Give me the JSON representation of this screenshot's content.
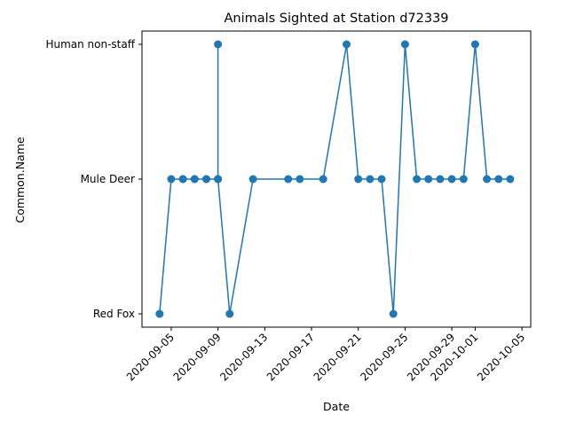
{
  "chart_data": {
    "type": "line",
    "title": "Animals Sighted at Station d72339",
    "xlabel": "Date",
    "ylabel": "Common.Name",
    "x_ticks": [
      "2020-09-05",
      "2020-09-09",
      "2020-09-13",
      "2020-09-17",
      "2020-09-21",
      "2020-09-25",
      "2020-09-29",
      "2020-10-01",
      "2020-10-05"
    ],
    "categories_y": [
      "Red Fox",
      "Mule Deer",
      "Human non-staff"
    ],
    "xlim": [
      "2020-09-02 12:00",
      "2020-10-05 18:00"
    ],
    "grid": false,
    "legend": "none",
    "color": "#1f77b4",
    "series": [
      {
        "points": [
          {
            "x": "2020-09-04",
            "y": "Red Fox"
          },
          {
            "x": "2020-09-05",
            "y": "Mule Deer"
          },
          {
            "x": "2020-09-06",
            "y": "Mule Deer"
          },
          {
            "x": "2020-09-06",
            "y": "Mule Deer"
          },
          {
            "x": "2020-09-07",
            "y": "Mule Deer"
          },
          {
            "x": "2020-09-07",
            "y": "Mule Deer"
          },
          {
            "x": "2020-09-08",
            "y": "Mule Deer"
          },
          {
            "x": "2020-09-08",
            "y": "Mule Deer"
          },
          {
            "x": "2020-09-09",
            "y": "Mule Deer"
          },
          {
            "x": "2020-09-09",
            "y": "Human non-staff"
          },
          {
            "x": "2020-09-09",
            "y": "Mule Deer"
          },
          {
            "x": "2020-09-10",
            "y": "Red Fox"
          },
          {
            "x": "2020-09-12",
            "y": "Mule Deer"
          },
          {
            "x": "2020-09-15",
            "y": "Mule Deer"
          },
          {
            "x": "2020-09-16",
            "y": "Mule Deer"
          },
          {
            "x": "2020-09-18",
            "y": "Mule Deer"
          },
          {
            "x": "2020-09-20",
            "y": "Human non-staff"
          },
          {
            "x": "2020-09-21",
            "y": "Mule Deer"
          },
          {
            "x": "2020-09-22",
            "y": "Mule Deer"
          },
          {
            "x": "2020-09-23",
            "y": "Mule Deer"
          },
          {
            "x": "2020-09-24",
            "y": "Red Fox"
          },
          {
            "x": "2020-09-25",
            "y": "Human non-staff"
          },
          {
            "x": "2020-09-26",
            "y": "Mule Deer"
          },
          {
            "x": "2020-09-27",
            "y": "Mule Deer"
          },
          {
            "x": "2020-09-28",
            "y": "Mule Deer"
          },
          {
            "x": "2020-09-29",
            "y": "Mule Deer"
          },
          {
            "x": "2020-09-30",
            "y": "Mule Deer"
          },
          {
            "x": "2020-10-01",
            "y": "Human non-staff"
          },
          {
            "x": "2020-10-02",
            "y": "Mule Deer"
          },
          {
            "x": "2020-10-03",
            "y": "Mule Deer"
          },
          {
            "x": "2020-10-04",
            "y": "Mule Deer"
          }
        ]
      }
    ]
  }
}
